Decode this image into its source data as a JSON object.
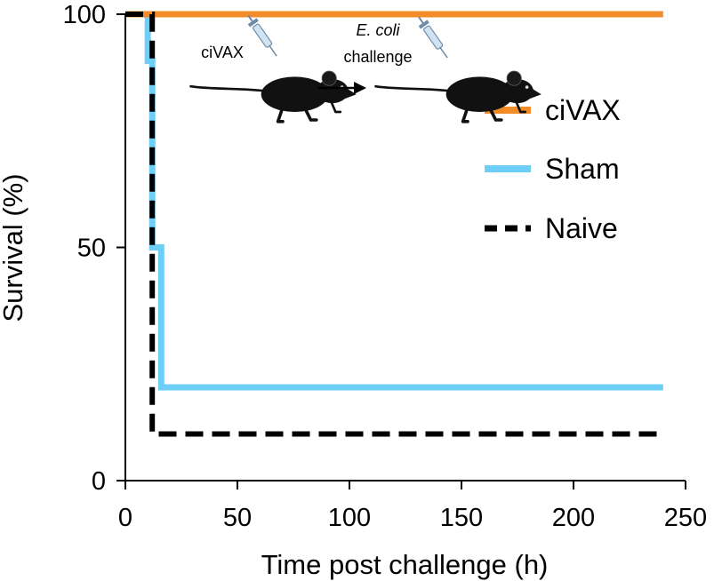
{
  "chart_data": {
    "type": "line",
    "step": true,
    "xlabel": "Time post challenge (h)",
    "ylabel": "Survival (%)",
    "xlim": [
      0,
      250
    ],
    "ylim": [
      0,
      100
    ],
    "xticks": [
      0,
      50,
      100,
      150,
      200,
      250
    ],
    "yticks": [
      0,
      50,
      100
    ],
    "grid": false,
    "legend_position": "right",
    "series": [
      {
        "name": "ciVAX",
        "color": "#F28C28",
        "dash": "solid",
        "x": [
          0,
          240
        ],
        "y": [
          100,
          100
        ]
      },
      {
        "name": "Sham",
        "color": "#6ECFF6",
        "dash": "solid",
        "x": [
          0,
          10,
          10,
          12,
          12,
          16,
          16,
          240
        ],
        "y": [
          100,
          100,
          90,
          90,
          50,
          50,
          20,
          20
        ]
      },
      {
        "name": "Naive",
        "color": "#000000",
        "dash": "dashed",
        "x": [
          0,
          12,
          12,
          240
        ],
        "y": [
          100,
          100,
          10,
          10
        ]
      }
    ],
    "inset": {
      "step1_label": "ciVAX",
      "step2_label_italic": "E. coli",
      "step2_label": "challenge",
      "mouse_icon": "mouse-icon",
      "syringe_icon": "syringe-icon",
      "arrow_icon": "arrow-right-icon"
    }
  }
}
